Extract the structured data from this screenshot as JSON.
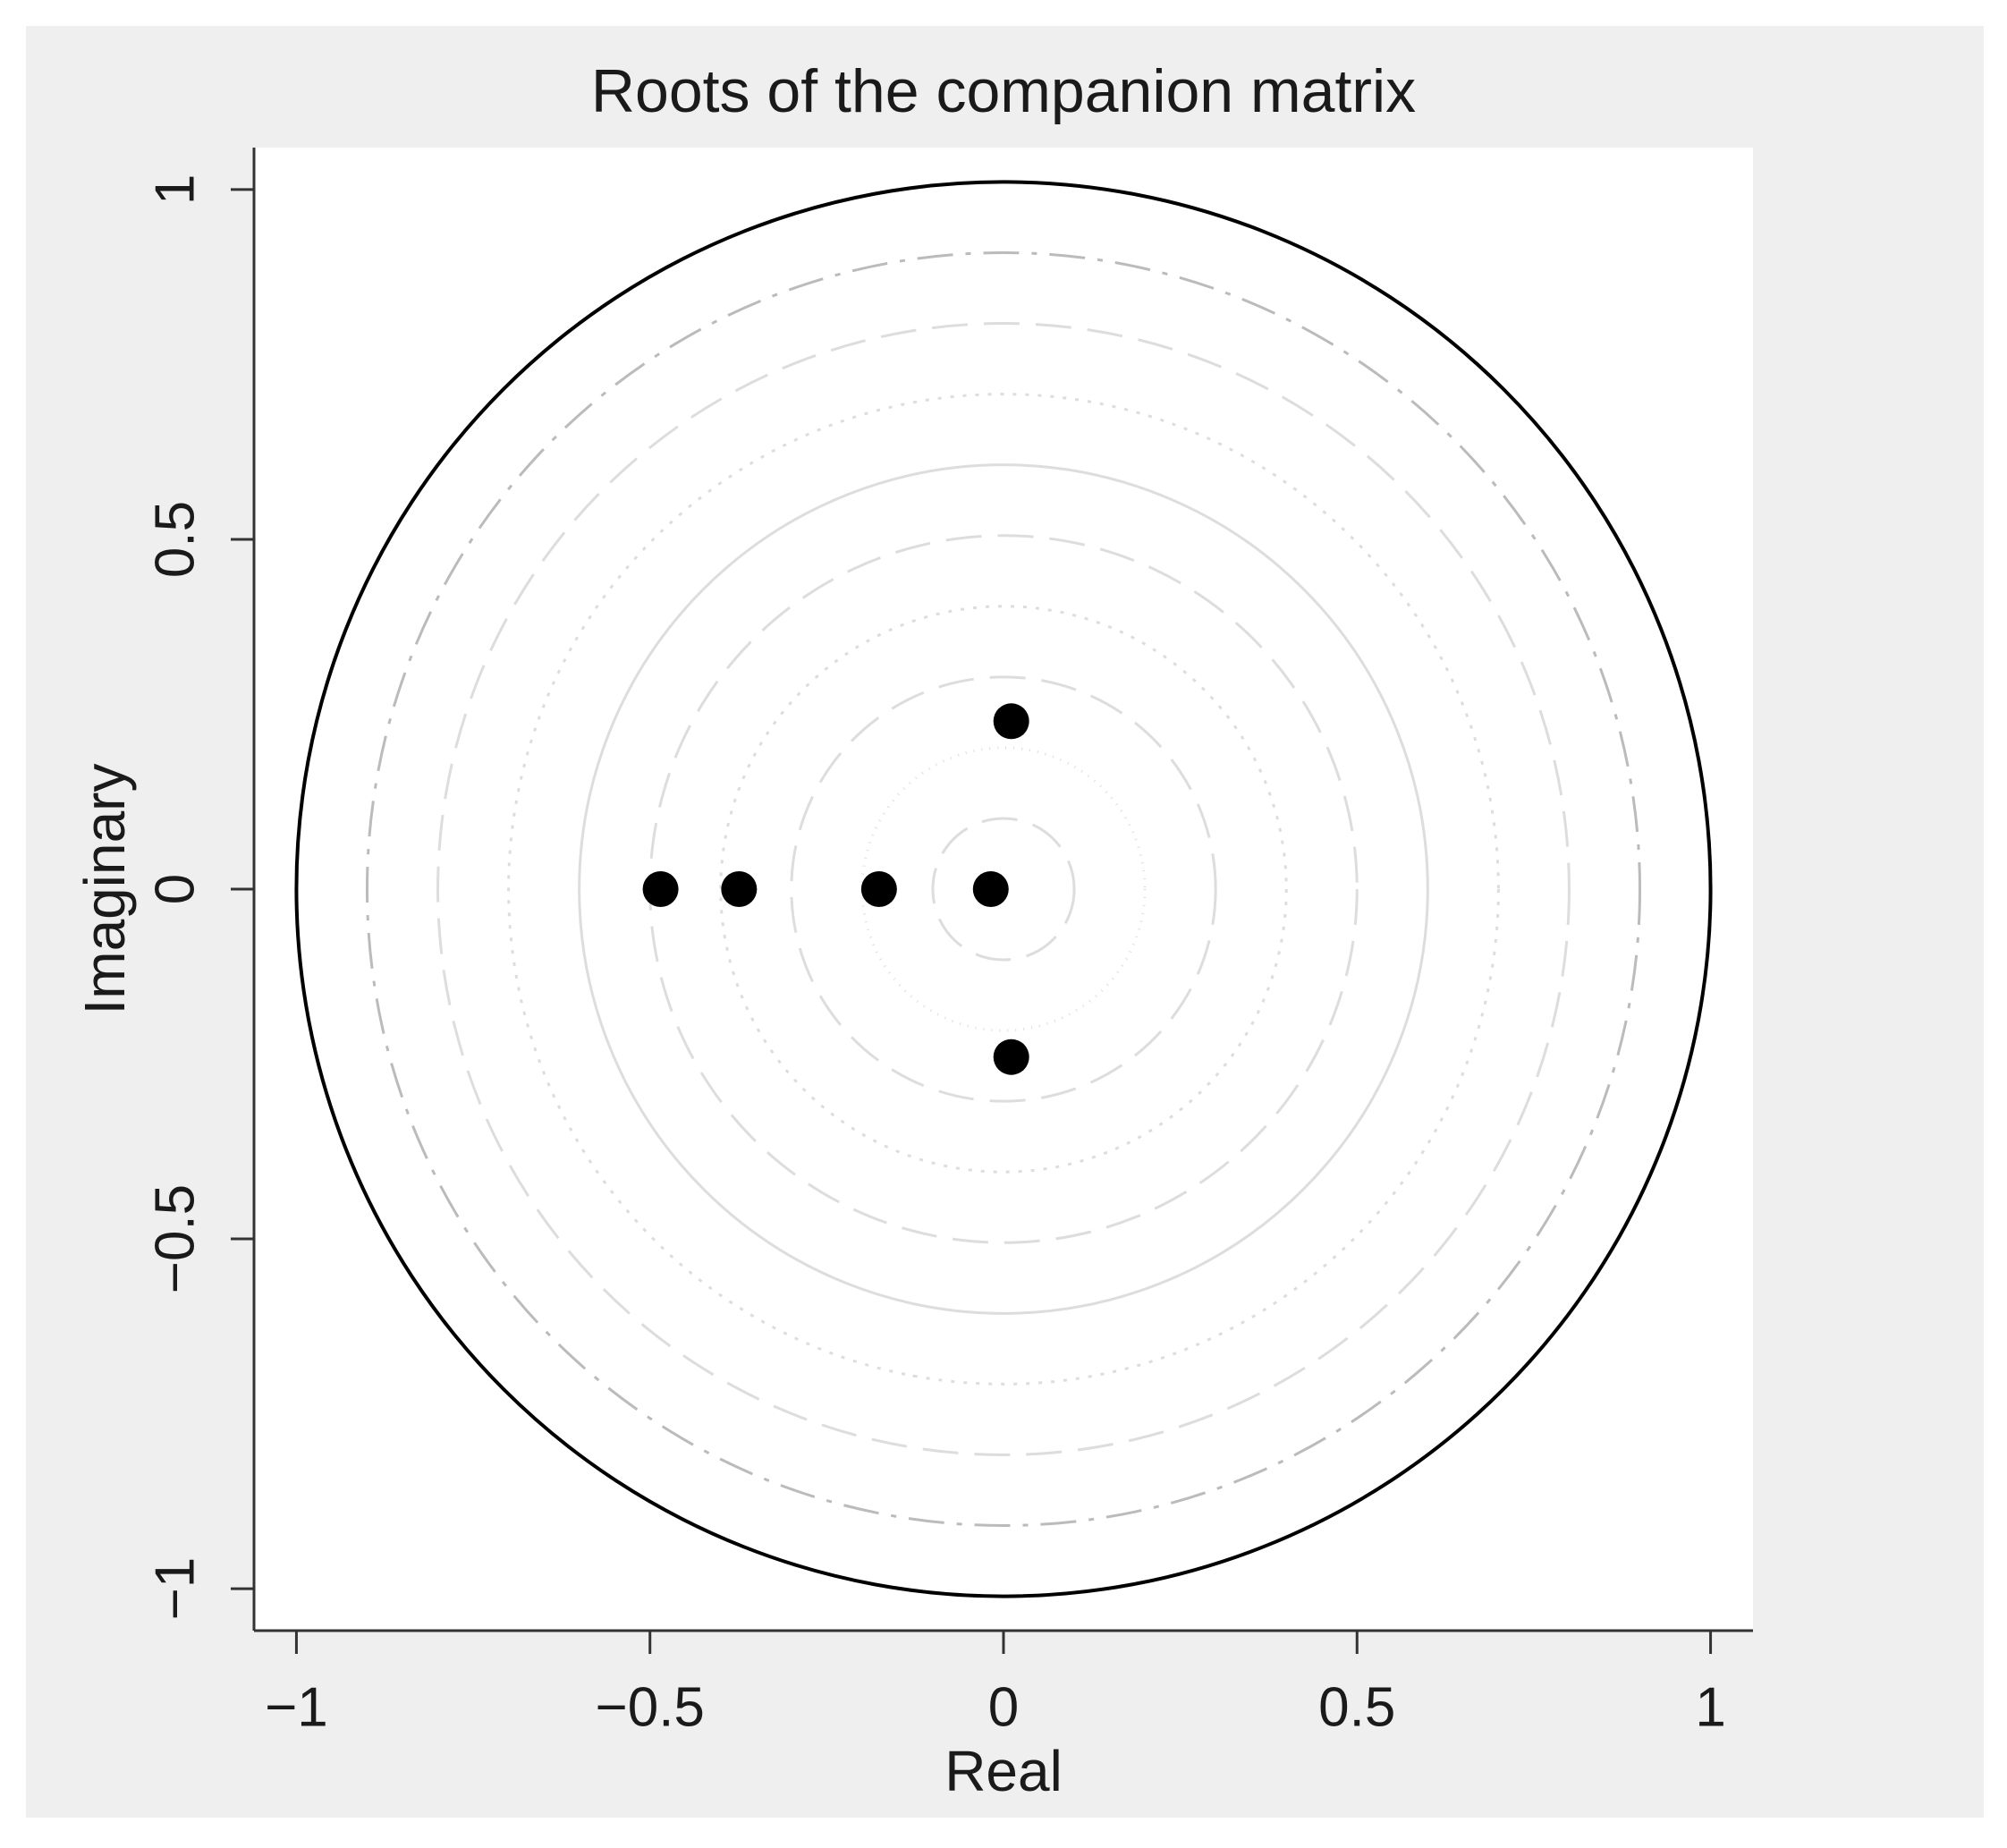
{
  "chart_data": {
    "type": "scatter",
    "title": "Roots of the companion matrix",
    "x_label": "Real",
    "y_label": "Imaginary",
    "x": [
      -0.485,
      -0.374,
      -0.176,
      -0.018,
      0.011,
      0.011
    ],
    "y": [
      0,
      0,
      0,
      0,
      0.24,
      -0.24
    ],
    "color": "#000000",
    "xlim": [
      -1.06,
      1.06
    ],
    "ylim": [
      -1.06,
      1.06
    ],
    "xticks": [
      {
        "value": -1,
        "label": "−1"
      },
      {
        "value": -0.5,
        "label": "−0.5"
      },
      0,
      0.5,
      1
    ],
    "yticks": [
      {
        "value": -1,
        "label": "−1"
      },
      {
        "value": -0.5,
        "label": "−0.5"
      },
      0,
      0.5,
      1
    ],
    "circles": [
      {
        "radius": 1,
        "color": "#000000"
      },
      {
        "radius": 0.9,
        "color": "#bbbbbb"
      },
      {
        "radius": 0.8,
        "color": "#dddddd"
      },
      {
        "radius": 0.7,
        "color": "#dddddd"
      },
      {
        "radius": 0.6,
        "color": "#dddddd"
      },
      {
        "radius": 0.5,
        "color": "#dddddd"
      },
      {
        "radius": 0.4,
        "color": "#dddddd"
      },
      {
        "radius": 0.3,
        "color": "#dddddd"
      },
      {
        "radius": 0.2,
        "color": "#dddddd"
      },
      {
        "radius": 0.1,
        "color": "#dddddd"
      }
    ]
  }
}
